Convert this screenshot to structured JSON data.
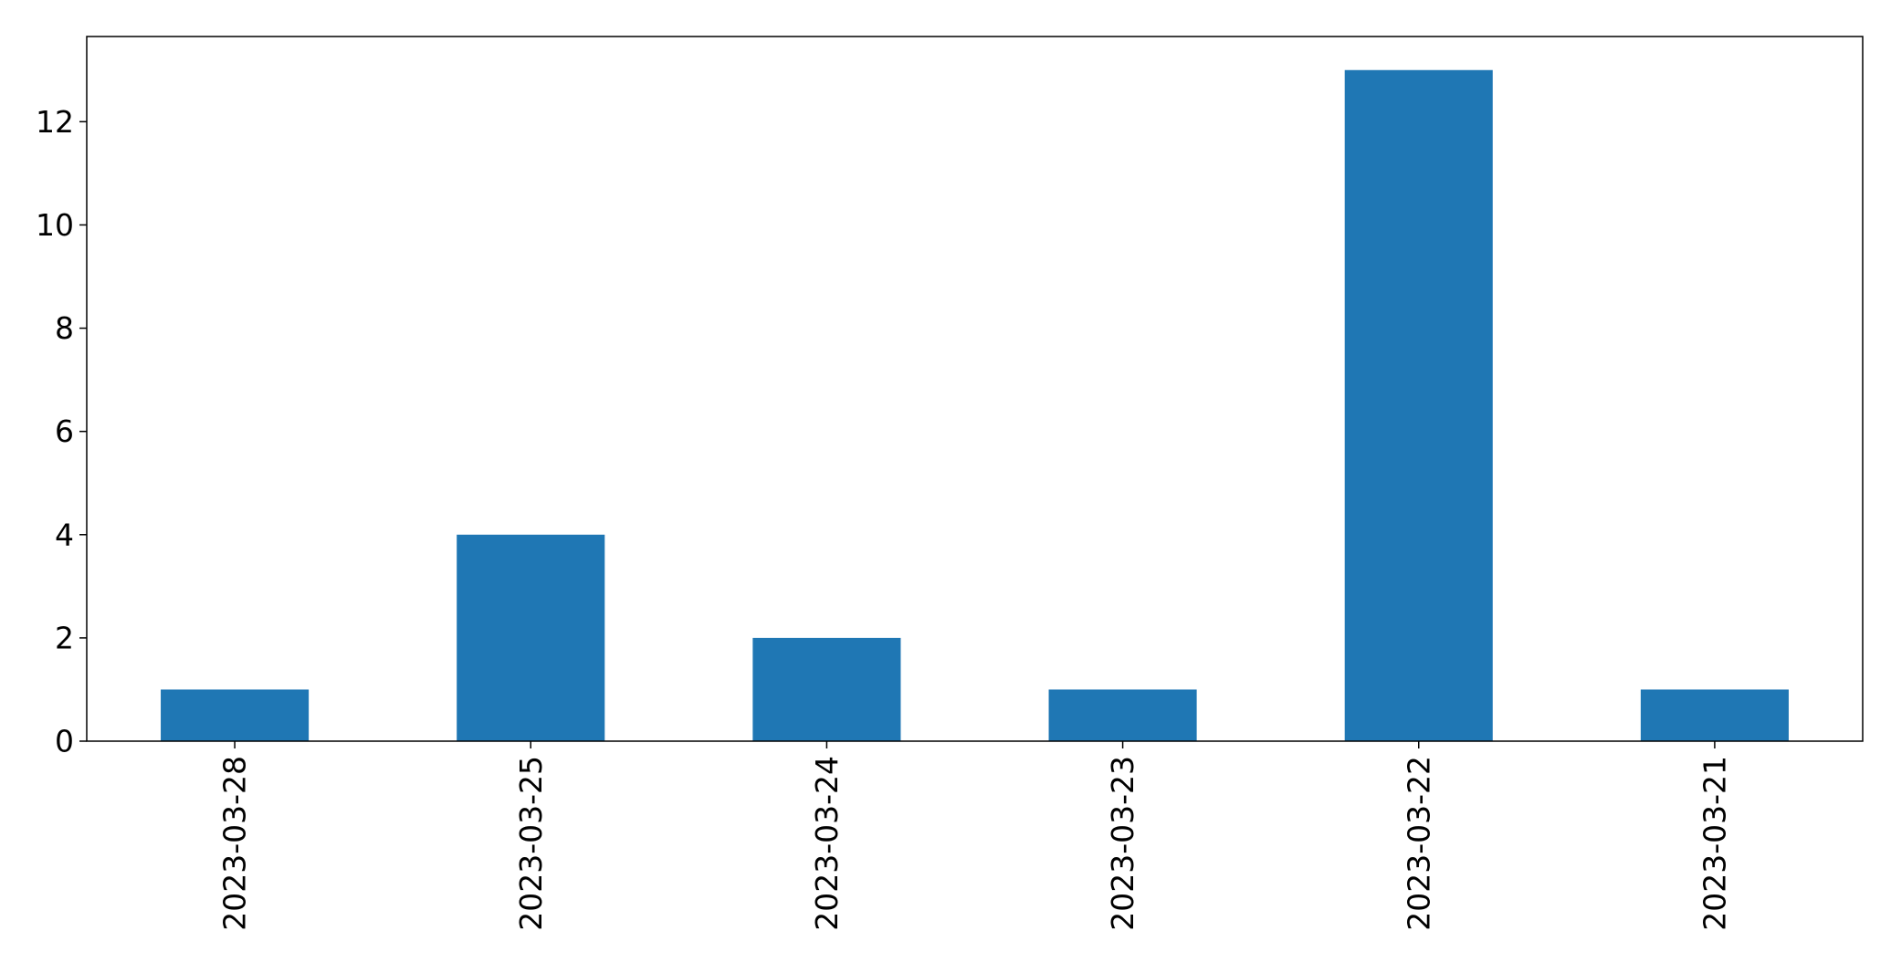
{
  "chart_data": {
    "type": "bar",
    "categories": [
      "2023-03-28",
      "2023-03-25",
      "2023-03-24",
      "2023-03-23",
      "2023-03-22",
      "2023-03-21"
    ],
    "values": [
      1,
      4,
      2,
      1,
      13,
      1
    ],
    "title": "",
    "xlabel": "",
    "ylabel": "",
    "ylim": [
      0,
      13.65
    ],
    "yticks": [
      "0",
      "2",
      "4",
      "6",
      "8",
      "10",
      "12"
    ],
    "grid": false,
    "bar_color": "#1f77b4"
  }
}
